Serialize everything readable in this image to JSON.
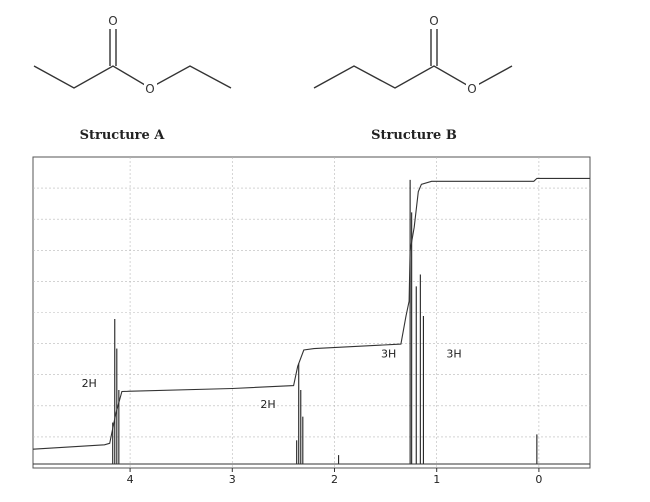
{
  "structures": [
    {
      "label": "Structure A",
      "carbonyl_oxygen": "O",
      "ester_oxygen": "O"
    },
    {
      "label": "Structure B",
      "carbonyl_oxygen": "O",
      "ester_oxygen": "O"
    }
  ],
  "chart_data": {
    "type": "line",
    "xlabel": "",
    "ylabel": "",
    "x_reversed": true,
    "xlim": [
      4.95,
      -0.5
    ],
    "ylim": [
      0,
      1
    ],
    "ticks": [
      {
        "value": 4,
        "label": "4"
      },
      {
        "value": 3,
        "label": "3"
      },
      {
        "value": 2,
        "label": "2"
      },
      {
        "value": 1,
        "label": "1"
      },
      {
        "value": 0,
        "label": "0"
      }
    ],
    "grid": true,
    "peaks": [
      {
        "shift": 4.15,
        "height": 0.49
      },
      {
        "shift": 4.13,
        "height": 0.39
      },
      {
        "shift": 4.11,
        "height": 0.25
      },
      {
        "shift": 4.17,
        "height": 0.14
      },
      {
        "shift": 2.35,
        "height": 0.34
      },
      {
        "shift": 2.33,
        "height": 0.25
      },
      {
        "shift": 2.31,
        "height": 0.16
      },
      {
        "shift": 2.37,
        "height": 0.08
      },
      {
        "shift": 1.96,
        "height": 0.03
      },
      {
        "shift": 1.26,
        "height": 0.96
      },
      {
        "shift": 1.245,
        "height": 0.85
      },
      {
        "shift": 1.2,
        "height": 0.6
      },
      {
        "shift": 1.16,
        "height": 0.64
      },
      {
        "shift": 1.13,
        "height": 0.5
      },
      {
        "shift": 0.02,
        "height": 0.1
      }
    ],
    "integral": [
      [
        4.95,
        0.05
      ],
      [
        4.25,
        0.065
      ],
      [
        4.2,
        0.07
      ],
      [
        4.14,
        0.17
      ],
      [
        4.08,
        0.245
      ],
      [
        3.0,
        0.255
      ],
      [
        2.4,
        0.265
      ],
      [
        2.36,
        0.33
      ],
      [
        2.3,
        0.385
      ],
      [
        2.2,
        0.39
      ],
      [
        1.35,
        0.405
      ],
      [
        1.3,
        0.5
      ],
      [
        1.27,
        0.55
      ],
      [
        1.26,
        0.72
      ],
      [
        1.22,
        0.8
      ],
      [
        1.18,
        0.92
      ],
      [
        1.15,
        0.945
      ],
      [
        1.05,
        0.955
      ],
      [
        0.05,
        0.955
      ],
      [
        0.02,
        0.965
      ],
      [
        -0.5,
        0.965
      ]
    ],
    "annotations": [
      {
        "text": "2H",
        "shift": 4.4,
        "level": 0.26
      },
      {
        "text": "2H",
        "shift": 2.65,
        "level": 0.19
      },
      {
        "text": "3H",
        "shift": 1.47,
        "level": 0.36
      },
      {
        "text": "3H",
        "shift": 0.83,
        "level": 0.36
      }
    ]
  }
}
